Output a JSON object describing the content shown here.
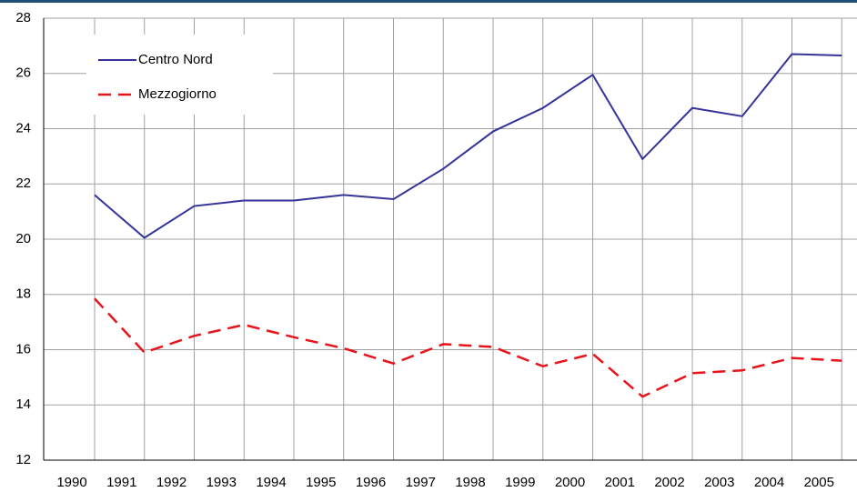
{
  "chart_data": {
    "type": "line",
    "categories": [
      "1990",
      "1991",
      "1992",
      "1993",
      "1994",
      "1995",
      "1996",
      "1997",
      "1998",
      "1999",
      "2000",
      "2001",
      "2002",
      "2003",
      "2004",
      "2005"
    ],
    "series": [
      {
        "name": "Centro Nord",
        "color": "#333399",
        "dash": false,
        "values": [
          21.6,
          20.05,
          21.2,
          21.4,
          21.4,
          21.6,
          21.45,
          22.55,
          23.9,
          24.75,
          25.95,
          22.9,
          24.75,
          24.45,
          26.7,
          26.65
        ]
      },
      {
        "name": "Mezzogiorno",
        "color": "#e8141c",
        "dash": true,
        "values": [
          17.85,
          15.9,
          16.5,
          16.9,
          16.45,
          16.05,
          15.5,
          16.2,
          16.1,
          15.4,
          15.85,
          14.3,
          15.15,
          15.25,
          15.7,
          15.6
        ]
      }
    ],
    "ylim": [
      12,
      28
    ],
    "yticks": [
      12,
      14,
      16,
      18,
      20,
      22,
      24,
      26,
      28
    ],
    "grid": true,
    "legend": "top-left"
  }
}
